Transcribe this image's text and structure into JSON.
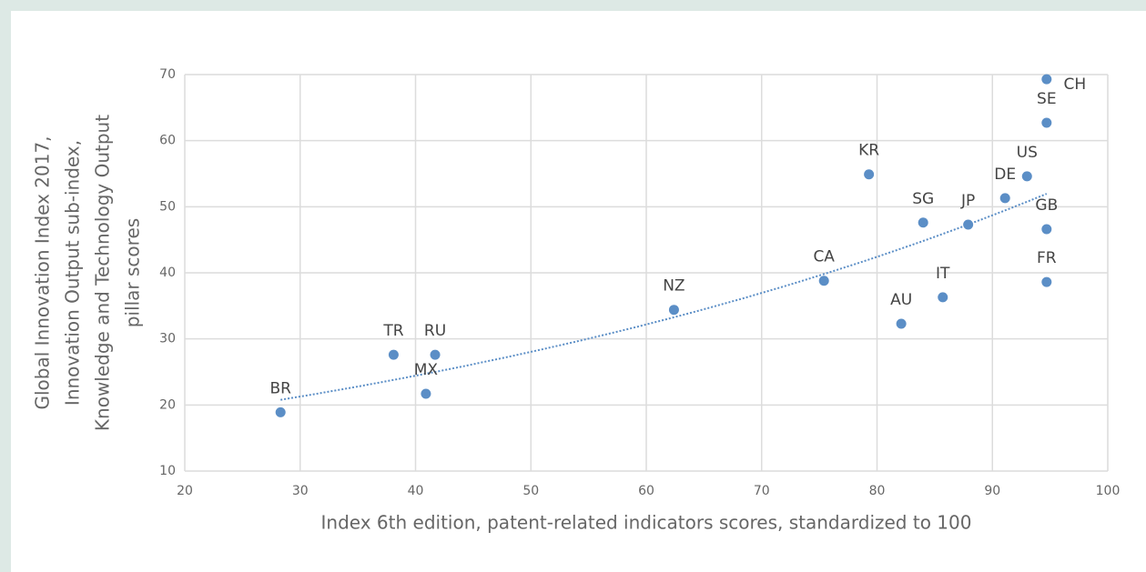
{
  "chart_data": {
    "type": "scatter",
    "x_label": "Index 6th edition, patent-related indicators scores, standardized to 100",
    "y_label": [
      "Global Innovation Index 2017,",
      "Innovation Output sub-index,",
      "Knowledge and Technology Output",
      "pillar scores"
    ],
    "color": "#5b8ec6",
    "trendline": "exponential",
    "grid": true,
    "xlim": [
      20,
      100
    ],
    "xticks": [
      20,
      30,
      40,
      50,
      60,
      70,
      80,
      90,
      100
    ],
    "ylim": [
      10,
      70
    ],
    "yticks": [
      10,
      20,
      30,
      40,
      50,
      60,
      70
    ],
    "labels": [
      "BR",
      "TR",
      "RU",
      "MX",
      "NZ",
      "CA",
      "KR",
      "AU",
      "SG",
      "IT",
      "JP",
      "DE",
      "US",
      "CH",
      "SE",
      "GB",
      "FR"
    ],
    "x": [
      28.3,
      38.1,
      41.7,
      40.9,
      62.4,
      75.4,
      79.3,
      82.1,
      84.0,
      85.7,
      87.9,
      91.1,
      93.0,
      94.7,
      94.7,
      94.7,
      94.7
    ],
    "y": [
      18.9,
      27.6,
      27.6,
      21.7,
      34.4,
      38.8,
      54.9,
      32.3,
      47.6,
      36.3,
      47.3,
      51.3,
      54.6,
      69.3,
      62.7,
      46.6,
      38.6
    ]
  }
}
